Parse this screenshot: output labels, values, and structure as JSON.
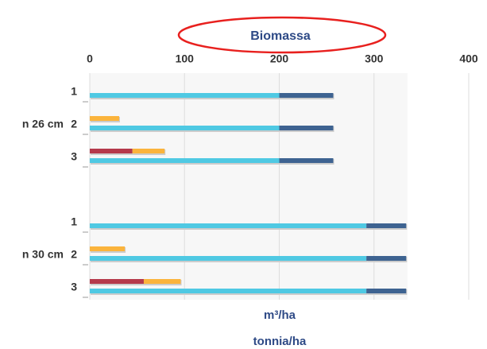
{
  "chart_data": {
    "type": "bar",
    "orientation": "horizontal",
    "title": "Biomassa",
    "xlabel": "m³/ha",
    "xlabel2": "tonnia/ha",
    "groups": [
      "n 26 cm",
      "n 30 cm"
    ],
    "categories": [
      [
        "1",
        "2",
        "3"
      ],
      [
        "1",
        "2",
        "3"
      ]
    ],
    "xlim": [
      0,
      400
    ],
    "xticks": [
      0,
      100,
      200,
      300,
      400
    ],
    "grid": true,
    "series": [
      {
        "color": "#b5394b",
        "stack": "upper",
        "values": [
          [
            null,
            null,
            45
          ],
          [
            null,
            null,
            57
          ]
        ]
      },
      {
        "color": "#fbb43c",
        "stack": "upper",
        "values": [
          [
            null,
            31,
            34
          ],
          [
            null,
            37,
            39
          ]
        ]
      },
      {
        "color": "#4fc9e3",
        "stack": "lower",
        "values": [
          [
            200,
            200,
            200
          ],
          [
            292,
            292,
            292
          ]
        ]
      },
      {
        "color": "#3e6391",
        "stack": "lower",
        "values": [
          [
            57,
            57,
            57
          ],
          [
            42,
            42,
            42
          ]
        ]
      }
    ]
  }
}
